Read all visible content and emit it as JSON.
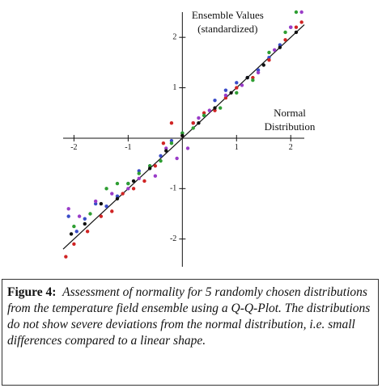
{
  "chart_data": {
    "type": "scatter",
    "y_label": [
      "Ensemble Values",
      "(standardized)"
    ],
    "x_label": [
      "Normal",
      "Distribution"
    ],
    "xlim": [
      -2.2,
      2.25
    ],
    "ylim": [
      -2.55,
      2.5
    ],
    "xticks": [
      -2,
      -1,
      1,
      2
    ],
    "yticks": [
      -2,
      -1,
      1,
      2
    ],
    "series": [
      {
        "color": "#3a4cc8",
        "x": [
          -2.1,
          -1.95,
          -1.8,
          -1.6,
          -1.4,
          -1.2,
          -1.0,
          -0.8,
          -0.6,
          -0.4,
          -0.2,
          0,
          0.2,
          0.4,
          0.6,
          0.8,
          1.0,
          1.2,
          1.4,
          1.6,
          1.8,
          2.0
        ],
        "values": [
          -1.55,
          -1.85,
          -1.6,
          -1.3,
          -1.35,
          -1.15,
          -0.9,
          -0.65,
          -0.55,
          -0.35,
          -0.05,
          0.1,
          0.3,
          0.45,
          0.75,
          0.95,
          1.1,
          1.2,
          1.35,
          1.6,
          1.85,
          2.2
        ]
      },
      {
        "color": "#d02424",
        "x": [
          -2.15,
          -2.0,
          -1.75,
          -1.5,
          -1.3,
          -1.1,
          -0.9,
          -0.7,
          -0.5,
          -0.35,
          -0.2,
          0,
          0.2,
          0.4,
          0.6,
          0.8,
          1.0,
          1.3,
          1.6,
          1.9,
          2.1,
          2.2
        ],
        "values": [
          -2.35,
          -2.1,
          -1.85,
          -1.55,
          -1.45,
          -1.1,
          -1.0,
          -0.85,
          -0.55,
          -0.1,
          0.3,
          0.05,
          0.3,
          0.5,
          0.55,
          0.8,
          1.0,
          1.2,
          1.55,
          1.95,
          2.2,
          2.3
        ]
      },
      {
        "color": "#2e9e32",
        "x": [
          -2.0,
          -1.7,
          -1.4,
          -1.2,
          -1.0,
          -0.8,
          -0.6,
          -0.4,
          -0.2,
          0,
          0.2,
          0.4,
          0.7,
          1.0,
          1.3,
          1.6,
          1.9,
          2.1
        ],
        "values": [
          -1.75,
          -1.5,
          -1.0,
          -0.9,
          -0.9,
          -0.7,
          -0.55,
          -0.45,
          -0.1,
          0.1,
          0.2,
          0.45,
          0.6,
          0.9,
          1.15,
          1.7,
          2.1,
          2.5
        ]
      },
      {
        "color": "#9a3cc8",
        "x": [
          -2.1,
          -1.9,
          -1.6,
          -1.3,
          -1.0,
          -0.8,
          -0.5,
          -0.3,
          -0.1,
          0.1,
          0.3,
          0.5,
          0.8,
          1.1,
          1.4,
          1.7,
          2.0,
          2.2
        ],
        "values": [
          -1.4,
          -1.55,
          -1.25,
          -1.1,
          -1.0,
          -0.8,
          -0.75,
          -0.2,
          -0.4,
          -0.2,
          0.4,
          0.55,
          0.85,
          1.05,
          1.3,
          1.75,
          2.2,
          2.5
        ]
      },
      {
        "color": "#111111",
        "x": [
          -2.05,
          -1.8,
          -1.5,
          -1.2,
          -0.9,
          -0.6,
          -0.3,
          0,
          0.3,
          0.6,
          0.9,
          1.2,
          1.5,
          1.8,
          2.1
        ],
        "values": [
          -1.9,
          -1.7,
          -1.3,
          -1.2,
          -0.85,
          -0.6,
          -0.25,
          0.05,
          0.3,
          0.6,
          0.9,
          1.2,
          1.45,
          1.8,
          2.1
        ]
      }
    ]
  },
  "caption": {
    "label": "Figure 4:",
    "text": "Assessment of normality for 5 randomly chosen distributions from the temperature field ensemble using a Q-Q-Plot. The distributions do not show severe deviations from the normal distribution, i.e. small differences compared to a linear shape."
  }
}
